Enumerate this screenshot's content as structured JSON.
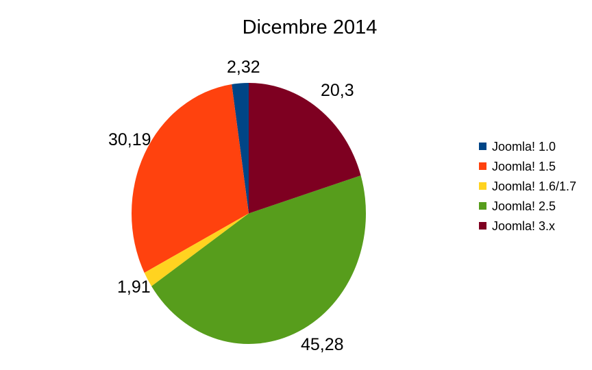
{
  "chart_data": {
    "type": "pie",
    "title": "Dicembre 2014",
    "legend_position": "right",
    "start_angle_deg": 90,
    "direction": "counterclockwise",
    "value_format": "comma-decimal",
    "total": 100,
    "slices": [
      {
        "name": "Joomla! 1.0",
        "value": 2.32,
        "label": "2,32",
        "color": "#004586"
      },
      {
        "name": "Joomla! 1.5",
        "value": 30.19,
        "label": "30,19",
        "color": "#FF420E"
      },
      {
        "name": "Joomla! 1.6/1.7",
        "value": 1.91,
        "label": "1,91",
        "color": "#FFD320"
      },
      {
        "name": "Joomla! 2.5",
        "value": 45.28,
        "label": "45,28",
        "color": "#579D1C"
      },
      {
        "name": "Joomla! 3.x",
        "value": 20.3,
        "label": "20,3",
        "color": "#7E0021"
      }
    ]
  }
}
